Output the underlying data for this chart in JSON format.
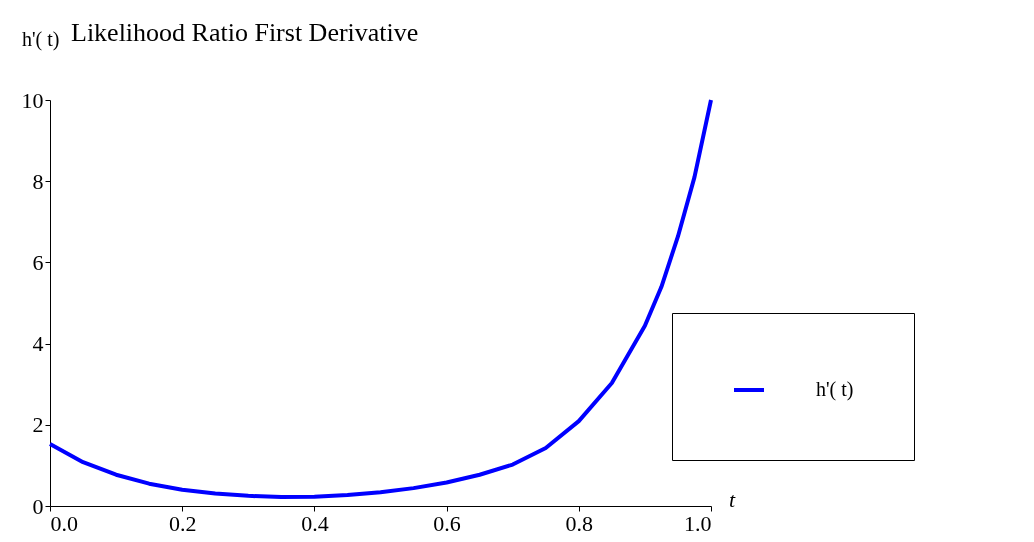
{
  "chart_data": {
    "type": "line",
    "title": "Likelihood  Ratio First Derivative",
    "xlabel": "t",
    "ylabel": "h'( t)",
    "x": [
      0,
      0.05,
      0.1,
      0.15,
      0.2,
      0.25,
      0.3,
      0.35,
      0.4,
      0.45,
      0.5,
      0.55,
      0.6,
      0.65,
      0.7,
      0.75,
      0.8,
      0.85,
      0.9,
      0.925,
      0.95,
      0.975,
      1.0
    ],
    "series": [
      {
        "name": "h'( t)",
        "color": "#0000ff",
        "values": [
          1.53,
          1.08,
          0.77,
          0.55,
          0.4,
          0.31,
          0.25,
          0.22,
          0.23,
          0.27,
          0.34,
          0.44,
          0.58,
          0.77,
          1.02,
          1.43,
          2.09,
          3.03,
          4.44,
          5.4,
          6.64,
          8.1,
          10.0
        ]
      }
    ],
    "xlim": [
      0,
      1
    ],
    "ylim": [
      0,
      10
    ],
    "xticks": [
      {
        "value": 0,
        "label": "0.0"
      },
      0.2,
      0.4,
      0.6,
      0.8,
      {
        "value": 1,
        "label": "1.0"
      }
    ],
    "yticks": [
      0,
      2,
      4,
      6,
      8,
      10
    ],
    "grid": false,
    "legend": "right",
    "marker": "none",
    "line_style": "solid"
  }
}
